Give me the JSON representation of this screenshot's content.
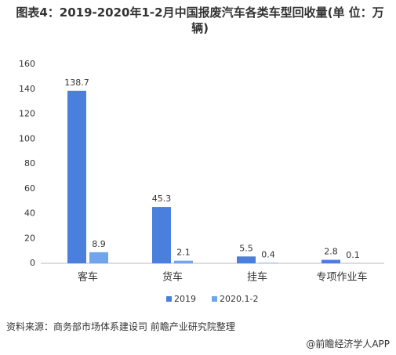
{
  "chart_data": {
    "type": "bar",
    "title": "图表4：2019-2020年1-2月中国报废汽车各类车型回收量(单 位：万辆)",
    "categories": [
      "客车",
      "货车",
      "挂车",
      "专项作业车"
    ],
    "series": [
      {
        "name": "2019",
        "color": "#4a7fdd",
        "values": [
          138.7,
          45.3,
          5.5,
          2.8
        ]
      },
      {
        "name": "2020.1-2",
        "color": "#6fa6ea",
        "values": [
          8.9,
          2.1,
          0.4,
          0.1
        ]
      }
    ],
    "ylim": [
      0,
      160
    ],
    "yticks": [
      0,
      20,
      40,
      60,
      80,
      100,
      120,
      140,
      160
    ],
    "grid": false,
    "legend": "bottom"
  },
  "source": "资料来源：商务部市场体系建设司 前瞻产业研究院整理",
  "footer": "@前瞻经济学人APP"
}
